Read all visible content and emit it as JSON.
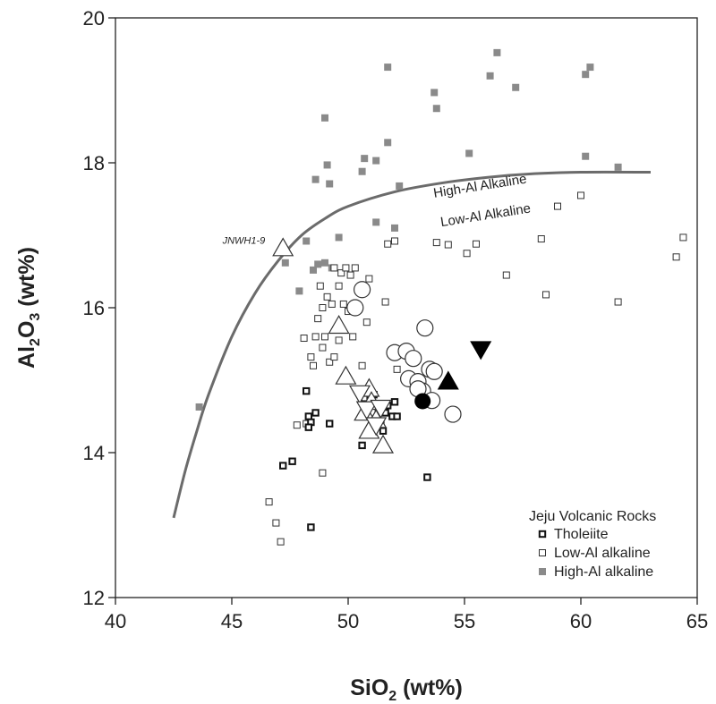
{
  "chart_data": {
    "type": "scatter",
    "xlabel": {
      "main": "SiO",
      "sub": "2",
      "suffix": " (wt%)"
    },
    "ylabel": {
      "main": "Al",
      "sub1": "2",
      "mid": "O",
      "sub2": "3",
      "suffix": " (wt%)"
    },
    "xlim": [
      40,
      65
    ],
    "ylim": [
      12,
      20
    ],
    "x_ticks": [
      40,
      45,
      50,
      55,
      60,
      65
    ],
    "y_ticks": [
      12,
      14,
      16,
      18,
      20
    ],
    "grid": false,
    "legend": {
      "position": "bottom-right",
      "title": "Jeju Volcanic Rocks",
      "entries": [
        "Tholeiite",
        "Low-Al alkaline",
        "High-Al alkaline"
      ]
    },
    "divider_curve": {
      "label_upper": "High-Al Alkaline",
      "label_lower": "Low-Al Alkaline",
      "color": "#6b6b6b",
      "points": [
        [
          42.5,
          13.1
        ],
        [
          43,
          13.75
        ],
        [
          43.5,
          14.3
        ],
        [
          44,
          14.8
        ],
        [
          45,
          15.6
        ],
        [
          46,
          16.2
        ],
        [
          47,
          16.65
        ],
        [
          48,
          17.0
        ],
        [
          49,
          17.23
        ],
        [
          50,
          17.4
        ],
        [
          52,
          17.6
        ],
        [
          54,
          17.72
        ],
        [
          56,
          17.8
        ],
        [
          58,
          17.85
        ],
        [
          60,
          17.87
        ],
        [
          63,
          17.87
        ]
      ]
    },
    "annotations": [
      {
        "text": "JNWH1-9",
        "x": 44.6,
        "y": 16.88
      }
    ],
    "colors": {
      "high_al": "#8a8a8a",
      "tholeiite": "#111111",
      "open": "#333333",
      "filled": "#000000"
    },
    "series": [
      {
        "name": "Tholeiite",
        "marker": "square-thick",
        "points": [
          [
            48.2,
            14.85
          ],
          [
            48.3,
            14.5
          ],
          [
            48.6,
            14.55
          ],
          [
            48.4,
            14.42
          ],
          [
            49.2,
            14.4
          ],
          [
            48.3,
            14.35
          ],
          [
            50.7,
            14.75
          ],
          [
            51.1,
            14.8
          ],
          [
            51.3,
            14.6
          ],
          [
            51.4,
            14.4
          ],
          [
            51.5,
            14.3
          ],
          [
            51.7,
            14.65
          ],
          [
            51.9,
            14.5
          ],
          [
            52.0,
            14.7
          ],
          [
            51.6,
            14.55
          ],
          [
            52.1,
            14.5
          ],
          [
            50.6,
            14.1
          ],
          [
            47.6,
            13.88
          ],
          [
            47.2,
            13.82
          ],
          [
            48.4,
            12.97
          ],
          [
            53.4,
            13.66
          ]
        ]
      },
      {
        "name": "Low-Al alkaline",
        "marker": "square-open",
        "points": [
          [
            46.6,
            13.32
          ],
          [
            46.9,
            13.03
          ],
          [
            47.1,
            12.77
          ],
          [
            48.9,
            13.72
          ],
          [
            47.8,
            14.38
          ],
          [
            48.2,
            14.4
          ],
          [
            48.1,
            15.58
          ],
          [
            48.6,
            15.6
          ],
          [
            48.4,
            15.32
          ],
          [
            48.5,
            15.2
          ],
          [
            48.9,
            15.45
          ],
          [
            49.2,
            15.25
          ],
          [
            49.0,
            15.6
          ],
          [
            49.4,
            15.32
          ],
          [
            49.6,
            15.55
          ],
          [
            48.7,
            15.85
          ],
          [
            48.9,
            16.0
          ],
          [
            49.1,
            16.15
          ],
          [
            49.3,
            16.05
          ],
          [
            48.8,
            16.3
          ],
          [
            49.4,
            16.55
          ],
          [
            49.7,
            16.48
          ],
          [
            49.9,
            16.55
          ],
          [
            50.1,
            16.45
          ],
          [
            50.3,
            16.55
          ],
          [
            49.6,
            16.3
          ],
          [
            49.8,
            16.05
          ],
          [
            50.0,
            15.95
          ],
          [
            50.2,
            15.6
          ],
          [
            50.6,
            15.2
          ],
          [
            50.8,
            15.8
          ],
          [
            50.9,
            16.4
          ],
          [
            51.6,
            16.08
          ],
          [
            51.7,
            16.88
          ],
          [
            52.0,
            16.92
          ],
          [
            53.8,
            16.9
          ],
          [
            54.3,
            16.87
          ],
          [
            55.1,
            16.75
          ],
          [
            55.5,
            16.88
          ],
          [
            56.8,
            16.45
          ],
          [
            58.3,
            16.95
          ],
          [
            58.5,
            16.18
          ],
          [
            59.0,
            17.4
          ],
          [
            60.0,
            17.55
          ],
          [
            61.6,
            16.08
          ],
          [
            64.1,
            16.7
          ],
          [
            64.4,
            16.97
          ],
          [
            52.3,
            15.42
          ],
          [
            52.1,
            15.15
          ]
        ]
      },
      {
        "name": "High-Al alkaline",
        "marker": "square-filled",
        "points": [
          [
            43.6,
            14.63
          ],
          [
            47.3,
            16.62
          ],
          [
            47.9,
            16.23
          ],
          [
            48.2,
            16.92
          ],
          [
            48.5,
            16.52
          ],
          [
            48.7,
            16.6
          ],
          [
            49.0,
            16.62
          ],
          [
            49.3,
            16.55
          ],
          [
            48.6,
            17.77
          ],
          [
            49.1,
            17.97
          ],
          [
            49.2,
            17.71
          ],
          [
            49.0,
            18.62
          ],
          [
            49.6,
            16.97
          ],
          [
            50.6,
            17.88
          ],
          [
            50.7,
            18.06
          ],
          [
            51.2,
            18.03
          ],
          [
            51.7,
            18.28
          ],
          [
            52.2,
            17.68
          ],
          [
            51.2,
            17.18
          ],
          [
            52.0,
            17.1
          ],
          [
            51.7,
            19.32
          ],
          [
            53.7,
            18.97
          ],
          [
            53.8,
            18.75
          ],
          [
            55.2,
            18.13
          ],
          [
            56.1,
            19.2
          ],
          [
            56.4,
            19.52
          ],
          [
            57.2,
            19.04
          ],
          [
            60.2,
            19.22
          ],
          [
            60.4,
            19.32
          ],
          [
            60.2,
            18.09
          ],
          [
            61.6,
            17.94
          ]
        ]
      },
      {
        "name": "",
        "marker": "circle-open",
        "points": [
          [
            50.6,
            16.25
          ],
          [
            50.3,
            16.0
          ],
          [
            52.0,
            15.38
          ],
          [
            52.5,
            15.4
          ],
          [
            53.3,
            15.72
          ],
          [
            52.8,
            15.3
          ],
          [
            52.6,
            15.02
          ],
          [
            53.0,
            14.98
          ],
          [
            53.5,
            15.15
          ],
          [
            53.7,
            15.12
          ],
          [
            53.2,
            14.85
          ],
          [
            53.6,
            14.72
          ],
          [
            53.0,
            14.88
          ],
          [
            54.5,
            14.53
          ]
        ]
      },
      {
        "name": "",
        "marker": "circle-filled",
        "points": [
          [
            53.2,
            14.71
          ]
        ]
      },
      {
        "name": "",
        "marker": "triangle-up-open",
        "points": [
          [
            47.2,
            16.82
          ],
          [
            49.6,
            15.75
          ],
          [
            49.9,
            15.05
          ],
          [
            50.9,
            14.88
          ],
          [
            51.0,
            14.7
          ],
          [
            50.7,
            14.55
          ],
          [
            51.2,
            14.45
          ],
          [
            50.9,
            14.3
          ],
          [
            51.5,
            14.1
          ]
        ]
      },
      {
        "name": "",
        "marker": "triangle-down-open",
        "points": [
          [
            50.5,
            14.82
          ],
          [
            50.8,
            14.6
          ],
          [
            51.4,
            14.62
          ],
          [
            51.2,
            14.38
          ]
        ]
      },
      {
        "name": "",
        "marker": "triangle-up-filled",
        "points": [
          [
            54.3,
            14.98
          ]
        ]
      },
      {
        "name": "",
        "marker": "triangle-down-filled",
        "points": [
          [
            55.7,
            15.43
          ]
        ]
      }
    ]
  }
}
